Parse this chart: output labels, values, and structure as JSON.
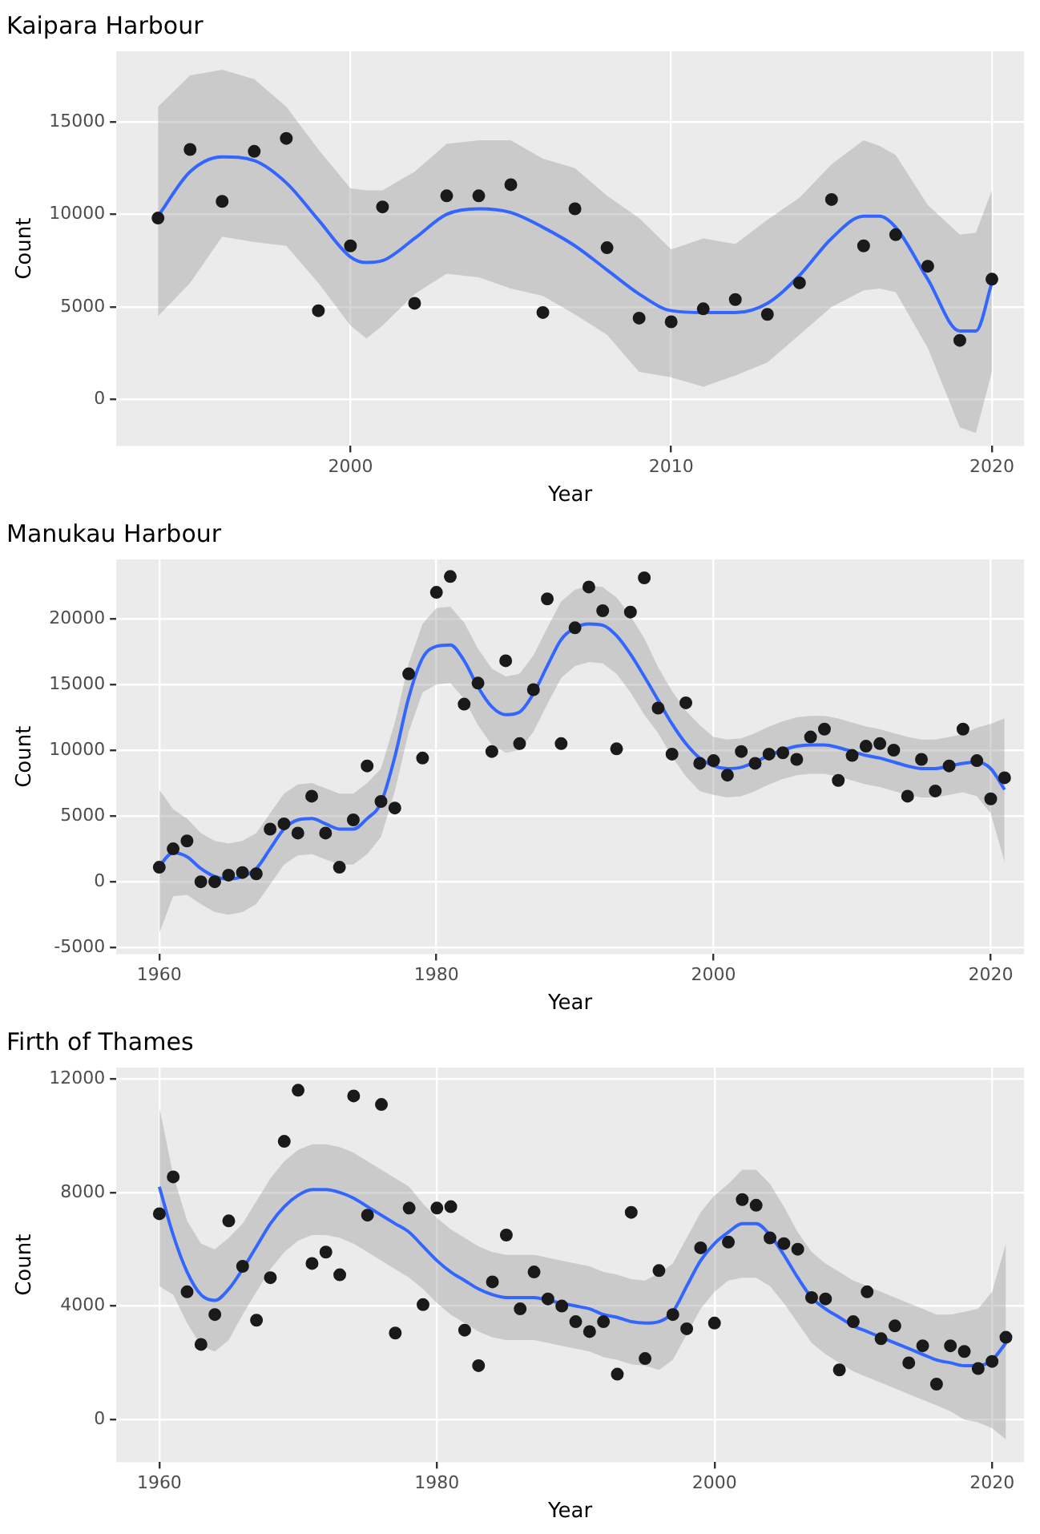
{
  "chart_data": [
    {
      "type": "scatter",
      "title": "Kaipara Harbour",
      "xlabel": "Year",
      "ylabel": "Count",
      "grid": true,
      "xlim": [
        1992.7,
        2021
      ],
      "ylim": [
        -2500,
        18800
      ],
      "xticks": [
        2000,
        2010,
        2020
      ],
      "yticks": [
        0,
        5000,
        10000,
        15000
      ],
      "series": [
        {
          "type": "line",
          "marker": "none",
          "color": "#3366ff",
          "x": [
            1994,
            1995,
            1996,
            1997,
            1998,
            1999,
            2000,
            2000.5,
            2001,
            2002,
            2003,
            2004,
            2005,
            2006,
            2007,
            2008,
            2009,
            2010,
            2011,
            2012,
            2013,
            2014,
            2015,
            2016,
            2016.5,
            2017,
            2018,
            2019,
            2019.5,
            2020
          ],
          "values": [
            9900,
            12300,
            13100,
            12900,
            11700,
            9700,
            7700,
            7400,
            7500,
            8700,
            10000,
            10300,
            10100,
            9300,
            8300,
            7000,
            5700,
            4800,
            4700,
            4700,
            5200,
            6700,
            8700,
            9900,
            9900,
            9300,
            6500,
            3700,
            3700,
            6300
          ],
          "lower": [
            4500,
            6300,
            8800,
            8500,
            8300,
            6300,
            4000,
            3300,
            4000,
            5700,
            6800,
            6600,
            6000,
            5600,
            4600,
            3500,
            1500,
            1200,
            700,
            1300,
            2000,
            3500,
            5000,
            5900,
            6000,
            5800,
            2800,
            -1500,
            -1800,
            1500
          ],
          "upper": [
            15800,
            17500,
            17800,
            17300,
            15800,
            13500,
            11400,
            11300,
            11300,
            12300,
            13800,
            14000,
            14000,
            13000,
            12500,
            11000,
            9800,
            8100,
            8700,
            8400,
            9700,
            10900,
            12700,
            14000,
            13700,
            13200,
            10500,
            8900,
            9000,
            11300
          ]
        },
        {
          "marker": "circle",
          "color": "#1a1a1a",
          "x": [
            1994,
            1995,
            1996,
            1997,
            1998,
            1999,
            2000,
            2001,
            2002,
            2003,
            2004,
            2005,
            2006,
            2007,
            2008,
            2009,
            2010,
            2011,
            2012,
            2013,
            2014,
            2015,
            2016,
            2017,
            2018,
            2019,
            2020
          ],
          "values": [
            9800,
            13500,
            10700,
            13400,
            14100,
            4800,
            8300,
            10400,
            5200,
            11000,
            11000,
            11600,
            4700,
            10300,
            8200,
            4400,
            4200,
            4900,
            5400,
            4600,
            6300,
            10800,
            8300,
            8900,
            7200,
            3200,
            6500
          ]
        }
      ]
    },
    {
      "type": "scatter",
      "title": "Manukau Harbour",
      "xlabel": "Year",
      "ylabel": "Count",
      "grid": true,
      "xlim": [
        1956.9,
        2022.4
      ],
      "ylim": [
        -5500,
        24500
      ],
      "xticks": [
        1960,
        1980,
        2000,
        2020
      ],
      "yticks": [
        -5000,
        0,
        5000,
        10000,
        15000,
        20000
      ],
      "series": [
        {
          "type": "line",
          "marker": "none",
          "color": "#3366ff",
          "x": [
            1960,
            1961,
            1962,
            1963,
            1964,
            1965,
            1966,
            1967,
            1968,
            1969,
            1970,
            1971,
            1972,
            1973,
            1974,
            1975,
            1976,
            1977,
            1978,
            1979,
            1980,
            1981,
            1982,
            1983,
            1984,
            1985,
            1986,
            1987,
            1988,
            1989,
            1990,
            1991,
            1992,
            1993,
            1994,
            1995,
            1996,
            1997,
            1998,
            1999,
            2000,
            2001,
            2002,
            2003,
            2004,
            2005,
            2006,
            2007,
            2008,
            2009,
            2010,
            2011,
            2012,
            2013,
            2014,
            2015,
            2016,
            2017,
            2018,
            2019,
            2020,
            2021
          ],
          "values": [
            1200,
            2200,
            1900,
            1000,
            400,
            200,
            400,
            1000,
            2500,
            4000,
            4700,
            4800,
            4400,
            4000,
            4000,
            4800,
            6000,
            9500,
            14000,
            17000,
            17900,
            18000,
            16800,
            14800,
            13300,
            12700,
            12900,
            14300,
            16400,
            18400,
            19300,
            19600,
            19500,
            18700,
            17300,
            15600,
            13800,
            12000,
            10500,
            9400,
            8800,
            8600,
            8700,
            9100,
            9600,
            10000,
            10300,
            10400,
            10400,
            10200,
            9900,
            9600,
            9400,
            9100,
            8800,
            8600,
            8600,
            8800,
            9000,
            9100,
            8600,
            7000
          ],
          "lower": [
            -3900,
            -1100,
            -1000,
            -1700,
            -2300,
            -2500,
            -2300,
            -1700,
            -200,
            1300,
            2000,
            2100,
            1700,
            1300,
            1300,
            2100,
            3400,
            6900,
            11400,
            14400,
            15000,
            15100,
            13900,
            11900,
            10400,
            9800,
            10000,
            11400,
            13500,
            15500,
            16400,
            16700,
            16600,
            15800,
            14400,
            12700,
            11300,
            9500,
            8000,
            6900,
            6600,
            6400,
            6500,
            6900,
            7400,
            7800,
            8100,
            8200,
            8200,
            8000,
            7700,
            7400,
            7200,
            6900,
            6600,
            6400,
            6400,
            6600,
            6800,
            6500,
            5200,
            1500
          ],
          "upper": [
            7000,
            5500,
            4800,
            3700,
            3100,
            2900,
            3100,
            3700,
            5200,
            6700,
            7400,
            7500,
            7100,
            6700,
            6700,
            7500,
            8600,
            12100,
            16600,
            19600,
            20800,
            20900,
            19700,
            17700,
            16200,
            15600,
            15800,
            17200,
            19300,
            21300,
            22200,
            22500,
            22400,
            21600,
            20200,
            18500,
            16300,
            14500,
            13000,
            11900,
            11000,
            10800,
            10900,
            11300,
            11800,
            12200,
            12500,
            12600,
            12600,
            12400,
            12100,
            11800,
            11600,
            11300,
            11000,
            10800,
            10800,
            11000,
            11200,
            11700,
            12000,
            12400
          ]
        },
        {
          "marker": "circle",
          "color": "#1a1a1a",
          "x": [
            1960,
            1961,
            1962,
            1963,
            1964,
            1965,
            1966,
            1967,
            1968,
            1969,
            1970,
            1971,
            1972,
            1973,
            1974,
            1975,
            1976,
            1977,
            1978,
            1979,
            1980,
            1981,
            1982,
            1983,
            1984,
            1985,
            1986,
            1987,
            1988,
            1989,
            1990,
            1991,
            1992,
            1993,
            1994,
            1995,
            1996,
            1997,
            1998,
            1999,
            2000,
            2001,
            2002,
            2003,
            2004,
            2005,
            2006,
            2007,
            2008,
            2009,
            2010,
            2011,
            2012,
            2013,
            2014,
            2015,
            2016,
            2017,
            2018,
            2019,
            2020,
            2021
          ],
          "values": [
            1100,
            2500,
            3100,
            0,
            0,
            500,
            700,
            600,
            4000,
            4400,
            3700,
            6500,
            3700,
            1100,
            4700,
            8800,
            6100,
            5600,
            15800,
            9400,
            22000,
            23200,
            13500,
            15100,
            9900,
            16800,
            10500,
            14600,
            21500,
            10500,
            19300,
            22400,
            20600,
            10100,
            20500,
            23100,
            13200,
            9700,
            13600,
            9000,
            9200,
            8100,
            9900,
            9000,
            9700,
            9800,
            9300,
            11000,
            11600,
            7700,
            9600,
            10300,
            10500,
            10000,
            6500,
            9300,
            6900,
            8800,
            11600,
            9200,
            6300,
            7900
          ]
        }
      ]
    },
    {
      "type": "scatter",
      "title": "Firth of Thames",
      "xlabel": "Year",
      "ylabel": "Count",
      "grid": true,
      "xlim": [
        1956.9,
        2022.3
      ],
      "ylim": [
        -1500,
        12400
      ],
      "xticks": [
        1960,
        1980,
        2000,
        2020
      ],
      "yticks": [
        0,
        4000,
        8000,
        12000
      ],
      "series": [
        {
          "type": "line",
          "marker": "none",
          "color": "#3366ff",
          "x": [
            1960,
            1961,
            1962,
            1963,
            1964,
            1965,
            1966,
            1967,
            1968,
            1969,
            1970,
            1971,
            1972,
            1973,
            1974,
            1975,
            1976,
            1977,
            1978,
            1979,
            1980,
            1981,
            1982,
            1983,
            1984,
            1985,
            1986,
            1987,
            1988,
            1989,
            1990,
            1991,
            1992,
            1993,
            1994,
            1995,
            1996,
            1997,
            1998,
            1999,
            2000,
            2001,
            2002,
            2003,
            2004,
            2005,
            2006,
            2007,
            2008,
            2009,
            2010,
            2011,
            2012,
            2013,
            2014,
            2015,
            2016,
            2017,
            2018,
            2019,
            2020,
            2021
          ],
          "values": [
            8200,
            6500,
            5200,
            4400,
            4200,
            4600,
            5300,
            6100,
            6900,
            7500,
            7900,
            8100,
            8100,
            8000,
            7800,
            7500,
            7200,
            6900,
            6600,
            6100,
            5600,
            5200,
            4900,
            4600,
            4400,
            4300,
            4300,
            4300,
            4200,
            4100,
            4000,
            3900,
            3700,
            3600,
            3450,
            3400,
            3450,
            3800,
            4700,
            5600,
            6200,
            6600,
            6900,
            6900,
            6500,
            5800,
            5000,
            4300,
            3900,
            3600,
            3300,
            3100,
            2900,
            2700,
            2500,
            2300,
            2100,
            2000,
            1900,
            1900,
            2100,
            2700
          ],
          "lower": [
            4700,
            4400,
            3400,
            2600,
            2400,
            2800,
            3700,
            4500,
            5300,
            5900,
            6300,
            6500,
            6500,
            6400,
            6200,
            5900,
            5600,
            5300,
            5000,
            4600,
            4100,
            3700,
            3400,
            3100,
            2900,
            2800,
            2800,
            2800,
            2700,
            2600,
            2500,
            2400,
            2200,
            2100,
            1950,
            1900,
            1750,
            2100,
            3000,
            3900,
            4500,
            4900,
            5000,
            5000,
            4700,
            4100,
            3400,
            2700,
            2300,
            2000,
            1700,
            1500,
            1300,
            1100,
            900,
            700,
            500,
            300,
            0,
            -100,
            -300,
            -700
          ],
          "upper": [
            11000,
            8600,
            7000,
            6200,
            6000,
            6400,
            6900,
            7700,
            8500,
            9100,
            9500,
            9700,
            9700,
            9600,
            9400,
            9100,
            8800,
            8500,
            8200,
            7600,
            7100,
            6700,
            6400,
            6100,
            5900,
            5800,
            5800,
            5800,
            5700,
            5600,
            5500,
            5400,
            5200,
            5100,
            4950,
            4900,
            5150,
            5500,
            6400,
            7300,
            7900,
            8300,
            8800,
            8800,
            8300,
            7500,
            6600,
            5900,
            5500,
            5200,
            4900,
            4700,
            4500,
            4300,
            4100,
            3900,
            3700,
            3700,
            3800,
            3900,
            4500,
            6200
          ]
        },
        {
          "marker": "circle",
          "color": "#1a1a1a",
          "x": [
            1960,
            1961,
            1962,
            1963,
            1964,
            1965,
            1966,
            1967,
            1968,
            1969,
            1970,
            1971,
            1972,
            1973,
            1974,
            1975,
            1976,
            1977,
            1978,
            1979,
            1980,
            1981,
            1982,
            1983,
            1984,
            1985,
            1986,
            1987,
            1988,
            1989,
            1990,
            1991,
            1992,
            1993,
            1994,
            1995,
            1996,
            1997,
            1998,
            1999,
            2000,
            2001,
            2002,
            2003,
            2004,
            2005,
            2006,
            2007,
            2008,
            2009,
            2010,
            2011,
            2012,
            2013,
            2014,
            2015,
            2016,
            2017,
            2018,
            2019,
            2020,
            2021
          ],
          "values": [
            7250,
            8550,
            4500,
            2650,
            3700,
            7000,
            5400,
            3500,
            5000,
            9800,
            11600,
            5500,
            5900,
            5100,
            11400,
            7200,
            11100,
            3050,
            7450,
            4050,
            7450,
            7500,
            3150,
            1900,
            4850,
            6500,
            3900,
            5200,
            4250,
            4000,
            3450,
            3100,
            3450,
            1600,
            7300,
            2150,
            5250,
            3700,
            3200,
            6050,
            3400,
            6250,
            7750,
            7550,
            6400,
            6200,
            6000,
            4300,
            4250,
            1750,
            3450,
            4500,
            2850,
            3300,
            2000,
            2600,
            1250,
            2600,
            2400,
            1800,
            2050,
            2900
          ]
        }
      ]
    }
  ]
}
